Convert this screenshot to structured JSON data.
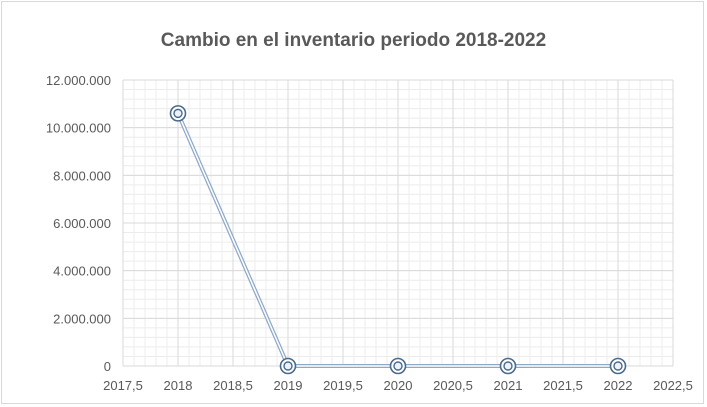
{
  "chart_data": {
    "type": "scatter",
    "title": "Cambio  en el inventario periodo 2018-2022",
    "xlabel": "",
    "ylabel": "",
    "x": [
      2018,
      2019,
      2020,
      2021,
      2022
    ],
    "y": [
      10600000,
      0,
      0,
      0,
      0
    ],
    "xlim": [
      2017.5,
      2022.5
    ],
    "ylim": [
      0,
      12000000
    ],
    "x_ticks": [
      {
        "value": 2017.5,
        "label": "2017,5"
      },
      {
        "value": 2018,
        "label": "2018"
      },
      {
        "value": 2018.5,
        "label": "2018,5"
      },
      {
        "value": 2019,
        "label": "2019"
      },
      {
        "value": 2019.5,
        "label": "2019,5"
      },
      {
        "value": 2020,
        "label": "2020"
      },
      {
        "value": 2020.5,
        "label": "2020,5"
      },
      {
        "value": 2021,
        "label": "2021"
      },
      {
        "value": 2021.5,
        "label": "2021,5"
      },
      {
        "value": 2022,
        "label": "2022"
      },
      {
        "value": 2022.5,
        "label": "2022,5"
      }
    ],
    "y_ticks": [
      {
        "value": 0,
        "label": "0"
      },
      {
        "value": 2000000,
        "label": "2.000.000"
      },
      {
        "value": 4000000,
        "label": "4.000.000"
      },
      {
        "value": 6000000,
        "label": "6.000.000"
      },
      {
        "value": 8000000,
        "label": "8.000.000"
      },
      {
        "value": 10000000,
        "label": "10.000.000"
      },
      {
        "value": 12000000,
        "label": "12.000.000"
      }
    ],
    "grid": true,
    "minor_grid": true,
    "legend": "none",
    "line_color": "#8ea9c8",
    "marker": "double-circle",
    "marker_color": "#4a6a8c",
    "grid_color": "#d9d9d9",
    "minor_grid_color": "#ececec"
  }
}
